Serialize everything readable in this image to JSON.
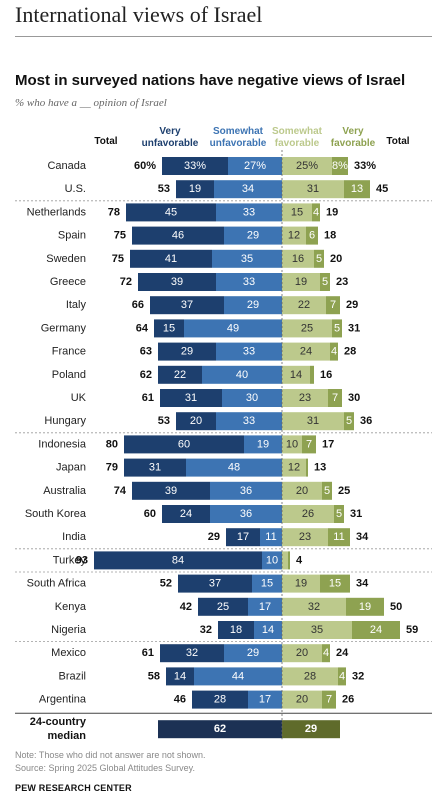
{
  "page_title": "International views of Israel",
  "chart_data": {
    "type": "bar",
    "title": "Most in surveyed nations have negative views of Israel",
    "subtitle": "% who have a __ opinion of Israel",
    "headers": {
      "total_unfav": "Total",
      "very_unfav": "Very unfavorable",
      "somewhat_unfav": "Somewhat unfavorable",
      "somewhat_fav": "Somewhat favorable",
      "very_fav": "Very favorable",
      "total_fav": "Total"
    },
    "colors": {
      "very_unfav": "#1d3f6e",
      "somewhat_unfav": "#3d74b3",
      "somewhat_fav": "#bcc98c",
      "very_fav": "#8ea251",
      "median_unfav": "#1c3154",
      "median_fav": "#5f6b2b"
    },
    "series_order": [
      "very_unfav",
      "somewhat_unfav",
      "somewhat_fav",
      "very_fav"
    ],
    "rows": [
      {
        "country": "Canada",
        "total_unfav": "60%",
        "very_unfav": "33%",
        "somewhat_unfav": "27%",
        "somewhat_fav": "25%",
        "very_fav": "8%",
        "total_fav": "33%",
        "v": [
          33,
          27,
          25,
          8
        ]
      },
      {
        "country": "U.S.",
        "total_unfav": "53",
        "very_unfav": "19",
        "somewhat_unfav": "34",
        "somewhat_fav": "31",
        "very_fav": "13",
        "total_fav": "45",
        "v": [
          19,
          34,
          31,
          13
        ]
      },
      {
        "country": "Netherlands",
        "total_unfav": "78",
        "very_unfav": "45",
        "somewhat_unfav": "33",
        "somewhat_fav": "15",
        "very_fav": "4",
        "total_fav": "19",
        "v": [
          45,
          33,
          15,
          4
        ]
      },
      {
        "country": "Spain",
        "total_unfav": "75",
        "very_unfav": "46",
        "somewhat_unfav": "29",
        "somewhat_fav": "12",
        "very_fav": "6",
        "total_fav": "18",
        "v": [
          46,
          29,
          12,
          6
        ]
      },
      {
        "country": "Sweden",
        "total_unfav": "75",
        "very_unfav": "41",
        "somewhat_unfav": "35",
        "somewhat_fav": "16",
        "very_fav": "5",
        "total_fav": "20",
        "v": [
          41,
          35,
          16,
          5
        ]
      },
      {
        "country": "Greece",
        "total_unfav": "72",
        "very_unfav": "39",
        "somewhat_unfav": "33",
        "somewhat_fav": "19",
        "very_fav": "5",
        "total_fav": "23",
        "v": [
          39,
          33,
          19,
          5
        ]
      },
      {
        "country": "Italy",
        "total_unfav": "66",
        "very_unfav": "37",
        "somewhat_unfav": "29",
        "somewhat_fav": "22",
        "very_fav": "7",
        "total_fav": "29",
        "v": [
          37,
          29,
          22,
          7
        ]
      },
      {
        "country": "Germany",
        "total_unfav": "64",
        "very_unfav": "15",
        "somewhat_unfav": "49",
        "somewhat_fav": "25",
        "very_fav": "5",
        "total_fav": "31",
        "v": [
          15,
          49,
          25,
          5
        ]
      },
      {
        "country": "France",
        "total_unfav": "63",
        "very_unfav": "29",
        "somewhat_unfav": "33",
        "somewhat_fav": "24",
        "very_fav": "4",
        "total_fav": "28",
        "v": [
          29,
          33,
          24,
          4
        ]
      },
      {
        "country": "Poland",
        "total_unfav": "62",
        "very_unfav": "22",
        "somewhat_unfav": "40",
        "somewhat_fav": "14",
        "very_fav": "",
        "total_fav": "16",
        "v": [
          22,
          40,
          14,
          2
        ]
      },
      {
        "country": "UK",
        "total_unfav": "61",
        "very_unfav": "31",
        "somewhat_unfav": "30",
        "somewhat_fav": "23",
        "very_fav": "7",
        "total_fav": "30",
        "v": [
          31,
          30,
          23,
          7
        ]
      },
      {
        "country": "Hungary",
        "total_unfav": "53",
        "very_unfav": "20",
        "somewhat_unfav": "33",
        "somewhat_fav": "31",
        "very_fav": "5",
        "total_fav": "36",
        "v": [
          20,
          33,
          31,
          5
        ]
      },
      {
        "country": "Indonesia",
        "total_unfav": "80",
        "very_unfav": "60",
        "somewhat_unfav": "19",
        "somewhat_fav": "10",
        "very_fav": "7",
        "total_fav": "17",
        "v": [
          60,
          19,
          10,
          7
        ]
      },
      {
        "country": "Japan",
        "total_unfav": "79",
        "very_unfav": "31",
        "somewhat_unfav": "48",
        "somewhat_fav": "12",
        "very_fav": "",
        "total_fav": "13",
        "v": [
          31,
          48,
          12,
          1
        ]
      },
      {
        "country": "Australia",
        "total_unfav": "74",
        "very_unfav": "39",
        "somewhat_unfav": "36",
        "somewhat_fav": "20",
        "very_fav": "5",
        "total_fav": "25",
        "v": [
          39,
          36,
          20,
          5
        ]
      },
      {
        "country": "South Korea",
        "total_unfav": "60",
        "very_unfav": "24",
        "somewhat_unfav": "36",
        "somewhat_fav": "26",
        "very_fav": "5",
        "total_fav": "31",
        "v": [
          24,
          36,
          26,
          5
        ]
      },
      {
        "country": "India",
        "total_unfav": "29",
        "very_unfav": "17",
        "somewhat_unfav": "11",
        "somewhat_fav": "23",
        "very_fav": "11",
        "total_fav": "34",
        "v": [
          17,
          11,
          23,
          11
        ]
      },
      {
        "country": "Turkey",
        "total_unfav": "93",
        "very_unfav": "84",
        "somewhat_unfav": "10",
        "somewhat_fav": "",
        "very_fav": "",
        "total_fav": "4",
        "v": [
          84,
          10,
          3,
          1
        ]
      },
      {
        "country": "South Africa",
        "total_unfav": "52",
        "very_unfav": "37",
        "somewhat_unfav": "15",
        "somewhat_fav": "19",
        "very_fav": "15",
        "total_fav": "34",
        "v": [
          37,
          15,
          19,
          15
        ]
      },
      {
        "country": "Kenya",
        "total_unfav": "42",
        "very_unfav": "25",
        "somewhat_unfav": "17",
        "somewhat_fav": "32",
        "very_fav": "19",
        "total_fav": "50",
        "v": [
          25,
          17,
          32,
          19
        ]
      },
      {
        "country": "Nigeria",
        "total_unfav": "32",
        "very_unfav": "18",
        "somewhat_unfav": "14",
        "somewhat_fav": "35",
        "very_fav": "24",
        "total_fav": "59",
        "v": [
          18,
          14,
          35,
          24
        ]
      },
      {
        "country": "Mexico",
        "total_unfav": "61",
        "very_unfav": "32",
        "somewhat_unfav": "29",
        "somewhat_fav": "20",
        "very_fav": "4",
        "total_fav": "24",
        "v": [
          32,
          29,
          20,
          4
        ]
      },
      {
        "country": "Brazil",
        "total_unfav": "58",
        "very_unfav": "14",
        "somewhat_unfav": "44",
        "somewhat_fav": "28",
        "very_fav": "4",
        "total_fav": "32",
        "v": [
          14,
          44,
          28,
          4
        ]
      },
      {
        "country": "Argentina",
        "total_unfav": "46",
        "very_unfav": "28",
        "somewhat_unfav": "17",
        "somewhat_fav": "20",
        "very_fav": "7",
        "total_fav": "26",
        "v": [
          28,
          17,
          20,
          7
        ]
      }
    ],
    "group_breaks_after": [
      "U.S.",
      "Hungary",
      "India",
      "Turkey",
      "Nigeria"
    ],
    "median": {
      "label_line1": "24-country",
      "label_line2": "median",
      "unfav": 62,
      "fav": 29
    }
  },
  "note": "Note: Those who did not answer are not shown.",
  "source": "Source: Spring 2025 Global Attitudes Survey.",
  "brand": "PEW RESEARCH CENTER"
}
